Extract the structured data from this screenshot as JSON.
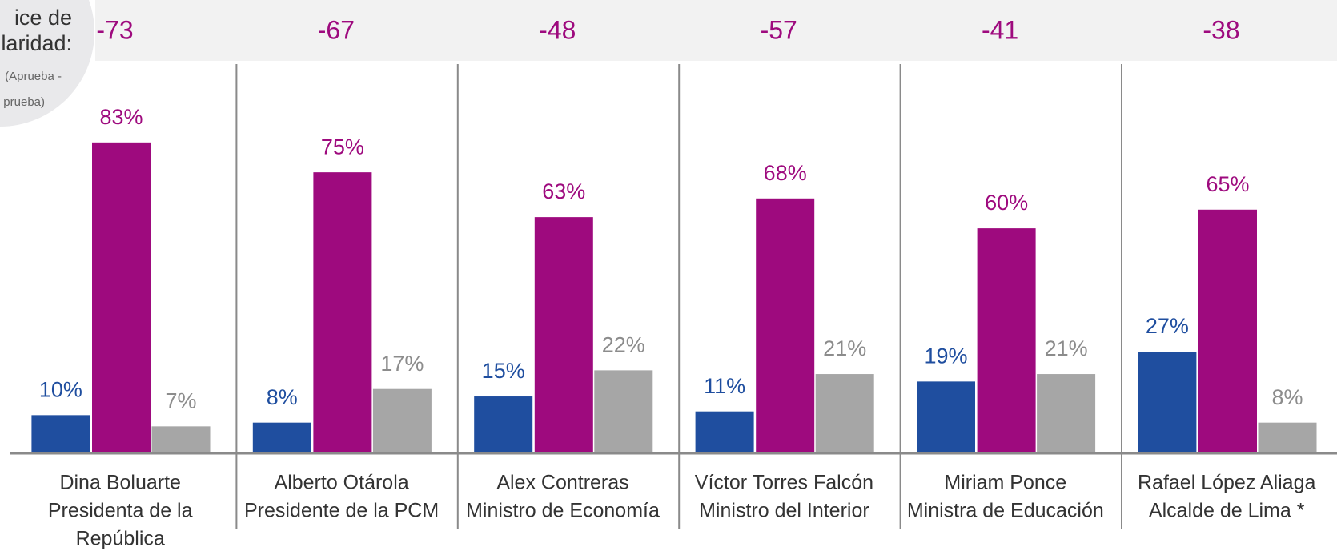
{
  "chart_data": {
    "type": "bar",
    "index_title": [
      "ice de",
      "laridad:"
    ],
    "index_subtitle": [
      "(Aprueba -",
      "prueba)"
    ],
    "index_values": [
      -73,
      -67,
      -48,
      -57,
      -41,
      -38
    ],
    "categories": [
      [
        "Dina Boluarte",
        "Presidenta de la",
        "República"
      ],
      [
        "Alberto Otárola",
        "Presidente de la PCM"
      ],
      [
        "Alex Contreras",
        "Ministro de Economía"
      ],
      [
        "Víctor Torres Falcón",
        "Ministro del Interior"
      ],
      [
        "Miriam Ponce",
        "Ministra de Educación"
      ],
      [
        "Rafael López Aliaga",
        "Alcalde de Lima *"
      ]
    ],
    "series": [
      {
        "color": "#1f4e9f",
        "values": [
          10,
          8,
          15,
          11,
          19,
          27
        ],
        "value_labels": [
          "10%",
          "8%",
          "15%",
          "11%",
          "19%",
          "27%"
        ]
      },
      {
        "color": "#9e0a7e",
        "values": [
          83,
          75,
          63,
          68,
          60,
          65
        ],
        "value_labels": [
          "83%",
          "75%",
          "63%",
          "68%",
          "60%",
          "65%"
        ]
      },
      {
        "color": "#a6a6a6",
        "values": [
          7,
          17,
          22,
          21,
          21,
          8
        ],
        "value_labels": [
          "7%",
          "17%",
          "22%",
          "21%",
          "21%",
          "8%"
        ]
      }
    ]
  }
}
